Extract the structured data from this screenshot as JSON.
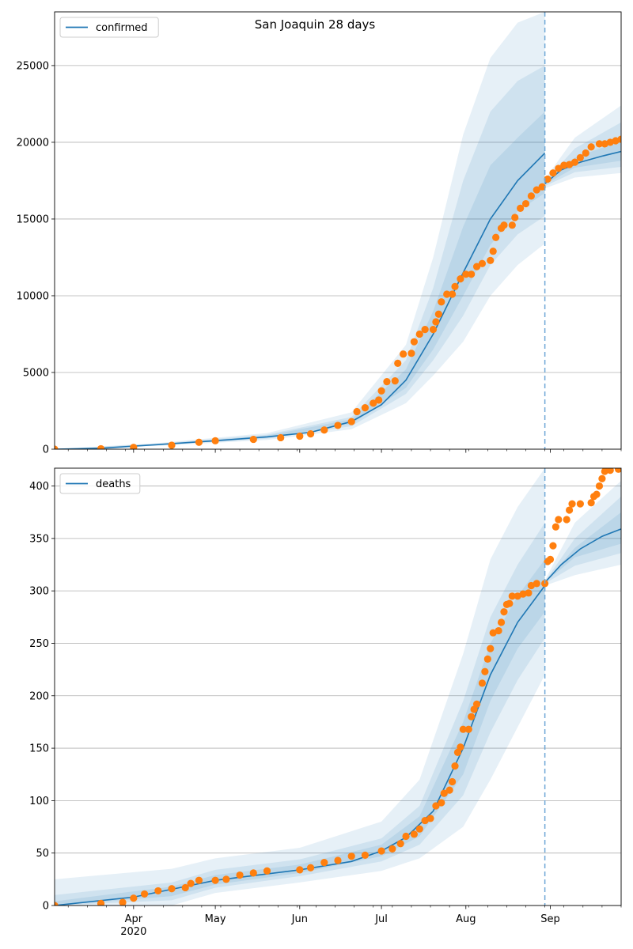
{
  "figure": {
    "title": "San Joaquin 28 days"
  },
  "x_axis": {
    "ticks": [
      {
        "date": "2020-04-01",
        "label": "Apr"
      },
      {
        "date": "2020-05-01",
        "label": "May"
      },
      {
        "date": "2020-06-01",
        "label": "Jun"
      },
      {
        "date": "2020-07-01",
        "label": "Jul"
      },
      {
        "date": "2020-08-01",
        "label": "Aug"
      },
      {
        "date": "2020-09-01",
        "label": "Sep"
      }
    ],
    "year_label": "2020",
    "range": [
      "2020-03-03",
      "2020-09-27"
    ]
  },
  "colors": {
    "model_line": "#1f77b4",
    "observed_points": "#ff7f0e",
    "band": "#1f77b4",
    "forecast_start_line": "#6fa8d6"
  },
  "chart_data": [
    {
      "type": "line",
      "panel": "top",
      "legend": {
        "label": "confirmed",
        "placement": "top-left"
      },
      "ylim": [
        0,
        28500
      ],
      "yticks": [
        0,
        5000,
        10000,
        15000,
        20000,
        25000
      ],
      "grid": "horizontal",
      "forecast_start": "2020-08-30",
      "model": [
        {
          "x": "2020-03-03",
          "y": 0
        },
        {
          "x": "2020-03-20",
          "y": 60
        },
        {
          "x": "2020-04-10",
          "y": 300
        },
        {
          "x": "2020-05-01",
          "y": 550
        },
        {
          "x": "2020-05-20",
          "y": 800
        },
        {
          "x": "2020-06-05",
          "y": 1100
        },
        {
          "x": "2020-06-20",
          "y": 1800
        },
        {
          "x": "2020-07-01",
          "y": 2900
        },
        {
          "x": "2020-07-10",
          "y": 4500
        },
        {
          "x": "2020-07-20",
          "y": 7500
        },
        {
          "x": "2020-07-31",
          "y": 11500
        },
        {
          "x": "2020-08-10",
          "y": 15000
        },
        {
          "x": "2020-08-20",
          "y": 17500
        },
        {
          "x": "2020-08-30",
          "y": 19300
        }
      ],
      "forecast": [
        {
          "x": "2020-08-30",
          "y": 17300
        },
        {
          "x": "2020-09-05",
          "y": 18200
        },
        {
          "x": "2020-09-12",
          "y": 18700
        },
        {
          "x": "2020-09-20",
          "y": 19100
        },
        {
          "x": "2020-09-27",
          "y": 19400
        }
      ],
      "bands": [
        {
          "x": "2020-03-03",
          "lo": [
            0,
            0,
            0
          ],
          "hi": [
            0,
            0,
            0
          ]
        },
        {
          "x": "2020-04-10",
          "lo": [
            220,
            250,
            270
          ],
          "hi": [
            400,
            360,
            330
          ]
        },
        {
          "x": "2020-05-20",
          "lo": [
            600,
            680,
            730
          ],
          "hi": [
            1050,
            950,
            880
          ]
        },
        {
          "x": "2020-06-20",
          "lo": [
            1300,
            1500,
            1650
          ],
          "hi": [
            2400,
            2100,
            1950
          ]
        },
        {
          "x": "2020-07-10",
          "lo": [
            3000,
            3600,
            4000
          ],
          "hi": [
            6800,
            5800,
            5200
          ]
        },
        {
          "x": "2020-07-20",
          "lo": [
            4800,
            5800,
            6500
          ],
          "hi": [
            12500,
            10500,
            9000
          ]
        },
        {
          "x": "2020-07-31",
          "lo": [
            7000,
            8700,
            10000
          ],
          "hi": [
            20500,
            17500,
            14500
          ]
        },
        {
          "x": "2020-08-10",
          "lo": [
            10000,
            12000,
            13300
          ],
          "hi": [
            25500,
            22000,
            18500
          ]
        },
        {
          "x": "2020-08-20",
          "lo": [
            12000,
            14000,
            15500
          ],
          "hi": [
            27800,
            24000,
            20300
          ]
        },
        {
          "x": "2020-08-30",
          "lo": [
            13400,
            15200,
            16700
          ],
          "hi": [
            28500,
            25000,
            22000
          ]
        },
        {
          "x": "2020-08-30",
          "lo": [
            17000,
            17150,
            17250
          ],
          "hi": [
            17600,
            17450,
            17350
          ]
        },
        {
          "x": "2020-09-10",
          "lo": [
            17700,
            18050,
            18350
          ],
          "hi": [
            20300,
            19600,
            19000
          ]
        },
        {
          "x": "2020-09-27",
          "lo": [
            18000,
            18400,
            18800
          ],
          "hi": [
            22400,
            21300,
            20100
          ]
        }
      ],
      "observed": [
        {
          "x": "2020-03-03",
          "y": 0
        },
        {
          "x": "2020-03-20",
          "y": 30
        },
        {
          "x": "2020-04-01",
          "y": 120
        },
        {
          "x": "2020-04-15",
          "y": 260
        },
        {
          "x": "2020-04-25",
          "y": 450
        },
        {
          "x": "2020-05-01",
          "y": 550
        },
        {
          "x": "2020-05-15",
          "y": 640
        },
        {
          "x": "2020-05-25",
          "y": 750
        },
        {
          "x": "2020-06-01",
          "y": 850
        },
        {
          "x": "2020-06-05",
          "y": 1000
        },
        {
          "x": "2020-06-10",
          "y": 1250
        },
        {
          "x": "2020-06-15",
          "y": 1550
        },
        {
          "x": "2020-06-20",
          "y": 1800
        },
        {
          "x": "2020-06-22",
          "y": 2450
        },
        {
          "x": "2020-06-25",
          "y": 2700
        },
        {
          "x": "2020-06-28",
          "y": 3000
        },
        {
          "x": "2020-06-30",
          "y": 3200
        },
        {
          "x": "2020-07-01",
          "y": 3800
        },
        {
          "x": "2020-07-03",
          "y": 4400
        },
        {
          "x": "2020-07-06",
          "y": 4450
        },
        {
          "x": "2020-07-07",
          "y": 5600
        },
        {
          "x": "2020-07-09",
          "y": 6200
        },
        {
          "x": "2020-07-12",
          "y": 6250
        },
        {
          "x": "2020-07-13",
          "y": 7000
        },
        {
          "x": "2020-07-15",
          "y": 7500
        },
        {
          "x": "2020-07-17",
          "y": 7800
        },
        {
          "x": "2020-07-20",
          "y": 7800
        },
        {
          "x": "2020-07-21",
          "y": 8300
        },
        {
          "x": "2020-07-22",
          "y": 8800
        },
        {
          "x": "2020-07-23",
          "y": 9600
        },
        {
          "x": "2020-07-25",
          "y": 10100
        },
        {
          "x": "2020-07-27",
          "y": 10100
        },
        {
          "x": "2020-07-28",
          "y": 10600
        },
        {
          "x": "2020-07-30",
          "y": 11100
        },
        {
          "x": "2020-08-01",
          "y": 11400
        },
        {
          "x": "2020-08-03",
          "y": 11400
        },
        {
          "x": "2020-08-05",
          "y": 11900
        },
        {
          "x": "2020-08-07",
          "y": 12100
        },
        {
          "x": "2020-08-10",
          "y": 12300
        },
        {
          "x": "2020-08-11",
          "y": 12900
        },
        {
          "x": "2020-08-12",
          "y": 13800
        },
        {
          "x": "2020-08-14",
          "y": 14400
        },
        {
          "x": "2020-08-15",
          "y": 14600
        },
        {
          "x": "2020-08-18",
          "y": 14600
        },
        {
          "x": "2020-08-19",
          "y": 15100
        },
        {
          "x": "2020-08-21",
          "y": 15700
        },
        {
          "x": "2020-08-23",
          "y": 16000
        },
        {
          "x": "2020-08-25",
          "y": 16500
        },
        {
          "x": "2020-08-27",
          "y": 16900
        },
        {
          "x": "2020-08-29",
          "y": 17100
        },
        {
          "x": "2020-08-31",
          "y": 17600
        },
        {
          "x": "2020-09-02",
          "y": 18000
        },
        {
          "x": "2020-09-04",
          "y": 18300
        },
        {
          "x": "2020-09-06",
          "y": 18500
        },
        {
          "x": "2020-09-08",
          "y": 18550
        },
        {
          "x": "2020-09-10",
          "y": 18700
        },
        {
          "x": "2020-09-12",
          "y": 19000
        },
        {
          "x": "2020-09-14",
          "y": 19300
        },
        {
          "x": "2020-09-16",
          "y": 19700
        },
        {
          "x": "2020-09-19",
          "y": 19900
        },
        {
          "x": "2020-09-21",
          "y": 19900
        },
        {
          "x": "2020-09-23",
          "y": 20000
        },
        {
          "x": "2020-09-25",
          "y": 20100
        },
        {
          "x": "2020-09-27",
          "y": 20200
        }
      ]
    },
    {
      "type": "line",
      "panel": "bottom",
      "legend": {
        "label": "deaths",
        "placement": "top-left"
      },
      "ylim": [
        0,
        417
      ],
      "yticks": [
        0,
        50,
        100,
        150,
        200,
        250,
        300,
        350,
        400
      ],
      "grid": "horizontal",
      "forecast_start": "2020-08-30",
      "model": [
        {
          "x": "2020-03-03",
          "y": 0
        },
        {
          "x": "2020-04-01",
          "y": 8
        },
        {
          "x": "2020-05-01",
          "y": 24
        },
        {
          "x": "2020-06-01",
          "y": 34
        },
        {
          "x": "2020-06-20",
          "y": 42
        },
        {
          "x": "2020-07-01",
          "y": 52
        },
        {
          "x": "2020-07-10",
          "y": 65
        },
        {
          "x": "2020-07-20",
          "y": 90
        },
        {
          "x": "2020-07-31",
          "y": 150
        },
        {
          "x": "2020-08-10",
          "y": 220
        },
        {
          "x": "2020-08-20",
          "y": 270
        },
        {
          "x": "2020-08-30",
          "y": 305
        }
      ],
      "forecast": [
        {
          "x": "2020-08-30",
          "y": 308
        },
        {
          "x": "2020-09-05",
          "y": 325
        },
        {
          "x": "2020-09-12",
          "y": 340
        },
        {
          "x": "2020-09-20",
          "y": 352
        },
        {
          "x": "2020-09-27",
          "y": 359
        }
      ],
      "bands": [
        {
          "x": "2020-03-03",
          "lo": [
            0,
            0,
            0
          ],
          "hi": [
            25,
            10,
            4
          ]
        },
        {
          "x": "2020-04-15",
          "lo": [
            0,
            5,
            9
          ],
          "hi": [
            35,
            22,
            18
          ]
        },
        {
          "x": "2020-05-01",
          "lo": [
            12,
            17,
            20
          ],
          "hi": [
            45,
            34,
            29
          ]
        },
        {
          "x": "2020-06-01",
          "lo": [
            22,
            28,
            31
          ],
          "hi": [
            55,
            44,
            39
          ]
        },
        {
          "x": "2020-07-01",
          "lo": [
            33,
            42,
            47
          ],
          "hi": [
            80,
            64,
            58
          ]
        },
        {
          "x": "2020-07-15",
          "lo": [
            45,
            58,
            66
          ],
          "hi": [
            120,
            95,
            85
          ]
        },
        {
          "x": "2020-07-31",
          "lo": [
            75,
            105,
            125
          ],
          "hi": [
            240,
            195,
            175
          ]
        },
        {
          "x": "2020-08-10",
          "lo": [
            120,
            165,
            195
          ],
          "hi": [
            330,
            275,
            250
          ]
        },
        {
          "x": "2020-08-20",
          "lo": [
            170,
            215,
            245
          ],
          "hi": [
            380,
            325,
            295
          ]
        },
        {
          "x": "2020-08-30",
          "lo": [
            220,
            255,
            280
          ],
          "hi": [
            417,
            365,
            330
          ]
        },
        {
          "x": "2020-08-30",
          "lo": [
            305,
            307,
            308
          ],
          "hi": [
            310,
            309,
            308
          ]
        },
        {
          "x": "2020-09-10",
          "lo": [
            315,
            324,
            332
          ],
          "hi": [
            365,
            350,
            341
          ]
        },
        {
          "x": "2020-09-27",
          "lo": [
            325,
            336,
            345
          ],
          "hi": [
            405,
            390,
            375
          ]
        }
      ],
      "observed": [
        {
          "x": "2020-03-03",
          "y": 0
        },
        {
          "x": "2020-03-20",
          "y": 2
        },
        {
          "x": "2020-03-28",
          "y": 3
        },
        {
          "x": "2020-04-01",
          "y": 7
        },
        {
          "x": "2020-04-05",
          "y": 11
        },
        {
          "x": "2020-04-10",
          "y": 14
        },
        {
          "x": "2020-04-15",
          "y": 16
        },
        {
          "x": "2020-04-20",
          "y": 17
        },
        {
          "x": "2020-04-22",
          "y": 21
        },
        {
          "x": "2020-04-25",
          "y": 24
        },
        {
          "x": "2020-05-01",
          "y": 24
        },
        {
          "x": "2020-05-05",
          "y": 25
        },
        {
          "x": "2020-05-10",
          "y": 29
        },
        {
          "x": "2020-05-15",
          "y": 31
        },
        {
          "x": "2020-05-20",
          "y": 33
        },
        {
          "x": "2020-06-01",
          "y": 34
        },
        {
          "x": "2020-06-05",
          "y": 36
        },
        {
          "x": "2020-06-10",
          "y": 41
        },
        {
          "x": "2020-06-15",
          "y": 43
        },
        {
          "x": "2020-06-20",
          "y": 47
        },
        {
          "x": "2020-06-25",
          "y": 48
        },
        {
          "x": "2020-07-01",
          "y": 52
        },
        {
          "x": "2020-07-05",
          "y": 54
        },
        {
          "x": "2020-07-08",
          "y": 59
        },
        {
          "x": "2020-07-10",
          "y": 66
        },
        {
          "x": "2020-07-13",
          "y": 68
        },
        {
          "x": "2020-07-15",
          "y": 73
        },
        {
          "x": "2020-07-17",
          "y": 81
        },
        {
          "x": "2020-07-19",
          "y": 83
        },
        {
          "x": "2020-07-21",
          "y": 95
        },
        {
          "x": "2020-07-23",
          "y": 98
        },
        {
          "x": "2020-07-24",
          "y": 107
        },
        {
          "x": "2020-07-26",
          "y": 110
        },
        {
          "x": "2020-07-27",
          "y": 118
        },
        {
          "x": "2020-07-28",
          "y": 133
        },
        {
          "x": "2020-07-29",
          "y": 146
        },
        {
          "x": "2020-07-30",
          "y": 151
        },
        {
          "x": "2020-07-31",
          "y": 168
        },
        {
          "x": "2020-08-02",
          "y": 168
        },
        {
          "x": "2020-08-03",
          "y": 180
        },
        {
          "x": "2020-08-04",
          "y": 187
        },
        {
          "x": "2020-08-05",
          "y": 192
        },
        {
          "x": "2020-08-07",
          "y": 212
        },
        {
          "x": "2020-08-08",
          "y": 223
        },
        {
          "x": "2020-08-09",
          "y": 235
        },
        {
          "x": "2020-08-10",
          "y": 245
        },
        {
          "x": "2020-08-11",
          "y": 260
        },
        {
          "x": "2020-08-13",
          "y": 262
        },
        {
          "x": "2020-08-14",
          "y": 270
        },
        {
          "x": "2020-08-15",
          "y": 280
        },
        {
          "x": "2020-08-16",
          "y": 287
        },
        {
          "x": "2020-08-17",
          "y": 288
        },
        {
          "x": "2020-08-18",
          "y": 295
        },
        {
          "x": "2020-08-20",
          "y": 295
        },
        {
          "x": "2020-08-22",
          "y": 297
        },
        {
          "x": "2020-08-24",
          "y": 298
        },
        {
          "x": "2020-08-25",
          "y": 305
        },
        {
          "x": "2020-08-27",
          "y": 307
        },
        {
          "x": "2020-08-30",
          "y": 307
        },
        {
          "x": "2020-08-31",
          "y": 328
        },
        {
          "x": "2020-09-01",
          "y": 330
        },
        {
          "x": "2020-09-02",
          "y": 343
        },
        {
          "x": "2020-09-03",
          "y": 361
        },
        {
          "x": "2020-09-04",
          "y": 368
        },
        {
          "x": "2020-09-07",
          "y": 368
        },
        {
          "x": "2020-09-08",
          "y": 377
        },
        {
          "x": "2020-09-09",
          "y": 383
        },
        {
          "x": "2020-09-12",
          "y": 383
        },
        {
          "x": "2020-09-16",
          "y": 384
        },
        {
          "x": "2020-09-17",
          "y": 390
        },
        {
          "x": "2020-09-18",
          "y": 392
        },
        {
          "x": "2020-09-19",
          "y": 400
        },
        {
          "x": "2020-09-20",
          "y": 407
        },
        {
          "x": "2020-09-21",
          "y": 414
        },
        {
          "x": "2020-09-23",
          "y": 415
        },
        {
          "x": "2020-09-26",
          "y": 416
        }
      ]
    }
  ]
}
